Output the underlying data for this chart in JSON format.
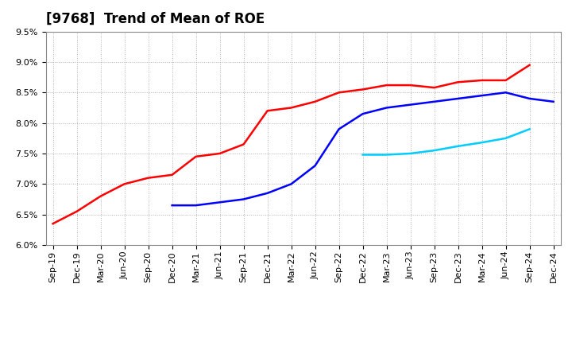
{
  "title": "[9768]  Trend of Mean of ROE",
  "ylabel": "",
  "ylim": [
    0.06,
    0.095
  ],
  "yticks": [
    0.06,
    0.065,
    0.07,
    0.075,
    0.08,
    0.085,
    0.09,
    0.095
  ],
  "background_color": "#ffffff",
  "grid_color": "#b0b0b0",
  "series": {
    "3 Years": {
      "color": "#ff0000",
      "data": [
        [
          "Sep-19",
          0.0635
        ],
        [
          "Dec-19",
          0.0655
        ],
        [
          "Mar-20",
          0.068
        ],
        [
          "Jun-20",
          0.07
        ],
        [
          "Sep-20",
          0.071
        ],
        [
          "Dec-20",
          0.0715
        ],
        [
          "Mar-21",
          0.0745
        ],
        [
          "Jun-21",
          0.075
        ],
        [
          "Sep-21",
          0.0765
        ],
        [
          "Dec-21",
          0.082
        ],
        [
          "Mar-22",
          0.0825
        ],
        [
          "Jun-22",
          0.0835
        ],
        [
          "Sep-22",
          0.085
        ],
        [
          "Dec-22",
          0.0855
        ],
        [
          "Mar-23",
          0.0862
        ],
        [
          "Jun-23",
          0.0862
        ],
        [
          "Sep-23",
          0.0858
        ],
        [
          "Dec-23",
          0.0867
        ],
        [
          "Mar-24",
          0.087
        ],
        [
          "Jun-24",
          0.087
        ],
        [
          "Sep-24",
          0.0895
        ],
        [
          "Dec-24",
          null
        ]
      ]
    },
    "5 Years": {
      "color": "#0000ff",
      "data": [
        [
          "Sep-19",
          null
        ],
        [
          "Dec-19",
          null
        ],
        [
          "Mar-20",
          null
        ],
        [
          "Jun-20",
          null
        ],
        [
          "Sep-20",
          null
        ],
        [
          "Dec-20",
          0.0665
        ],
        [
          "Mar-21",
          0.0665
        ],
        [
          "Jun-21",
          0.067
        ],
        [
          "Sep-21",
          0.0675
        ],
        [
          "Dec-21",
          0.0685
        ],
        [
          "Mar-22",
          0.07
        ],
        [
          "Jun-22",
          0.073
        ],
        [
          "Sep-22",
          0.079
        ],
        [
          "Dec-22",
          0.0815
        ],
        [
          "Mar-23",
          0.0825
        ],
        [
          "Jun-23",
          0.083
        ],
        [
          "Sep-23",
          0.0835
        ],
        [
          "Dec-23",
          0.084
        ],
        [
          "Mar-24",
          0.0845
        ],
        [
          "Jun-24",
          0.085
        ],
        [
          "Sep-24",
          0.084
        ],
        [
          "Dec-24",
          0.0835
        ]
      ]
    },
    "7 Years": {
      "color": "#00ccff",
      "data": [
        [
          "Sep-19",
          null
        ],
        [
          "Dec-19",
          null
        ],
        [
          "Mar-20",
          null
        ],
        [
          "Jun-20",
          null
        ],
        [
          "Sep-20",
          null
        ],
        [
          "Dec-20",
          null
        ],
        [
          "Mar-21",
          null
        ],
        [
          "Jun-21",
          null
        ],
        [
          "Sep-21",
          null
        ],
        [
          "Dec-21",
          null
        ],
        [
          "Mar-22",
          null
        ],
        [
          "Jun-22",
          null
        ],
        [
          "Sep-22",
          null
        ],
        [
          "Dec-22",
          0.0748
        ],
        [
          "Mar-23",
          0.0748
        ],
        [
          "Jun-23",
          0.075
        ],
        [
          "Sep-23",
          0.0755
        ],
        [
          "Dec-23",
          0.0762
        ],
        [
          "Mar-24",
          0.0768
        ],
        [
          "Jun-24",
          0.0775
        ],
        [
          "Sep-24",
          0.079
        ],
        [
          "Dec-24",
          null
        ]
      ]
    },
    "10 Years": {
      "color": "#008000",
      "data": [
        [
          "Sep-19",
          null
        ],
        [
          "Dec-19",
          null
        ],
        [
          "Mar-20",
          null
        ],
        [
          "Jun-20",
          null
        ],
        [
          "Sep-20",
          null
        ],
        [
          "Dec-20",
          null
        ],
        [
          "Mar-21",
          null
        ],
        [
          "Jun-21",
          null
        ],
        [
          "Sep-21",
          null
        ],
        [
          "Dec-21",
          null
        ],
        [
          "Mar-22",
          null
        ],
        [
          "Jun-22",
          null
        ],
        [
          "Sep-22",
          null
        ],
        [
          "Dec-22",
          null
        ],
        [
          "Mar-23",
          null
        ],
        [
          "Jun-23",
          null
        ],
        [
          "Sep-23",
          null
        ],
        [
          "Dec-23",
          null
        ],
        [
          "Mar-24",
          null
        ],
        [
          "Jun-24",
          null
        ],
        [
          "Sep-24",
          null
        ],
        [
          "Dec-24",
          null
        ]
      ]
    }
  },
  "x_labels": [
    "Sep-19",
    "Dec-19",
    "Mar-20",
    "Jun-20",
    "Sep-20",
    "Dec-20",
    "Mar-21",
    "Jun-21",
    "Sep-21",
    "Dec-21",
    "Mar-22",
    "Jun-22",
    "Sep-22",
    "Dec-22",
    "Mar-23",
    "Jun-23",
    "Sep-23",
    "Dec-23",
    "Mar-24",
    "Jun-24",
    "Sep-24",
    "Dec-24"
  ],
  "title_fontsize": 12,
  "tick_fontsize": 8,
  "legend_fontsize": 9,
  "linewidth": 1.8
}
